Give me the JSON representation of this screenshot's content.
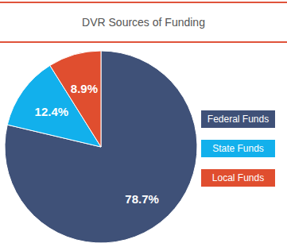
{
  "chart_data": {
    "type": "pie",
    "title": "DVR Sources of Funding",
    "categories": [
      "Federal Funds",
      "State Funds",
      "Local Funds"
    ],
    "values": [
      78.7,
      12.4,
      8.9
    ],
    "value_labels": [
      "78.7%",
      "12.4%",
      "8.9%"
    ],
    "colors": [
      "#3f5178",
      "#12b0ec",
      "#e04e2f"
    ],
    "data_labels": true,
    "legend": "right"
  }
}
